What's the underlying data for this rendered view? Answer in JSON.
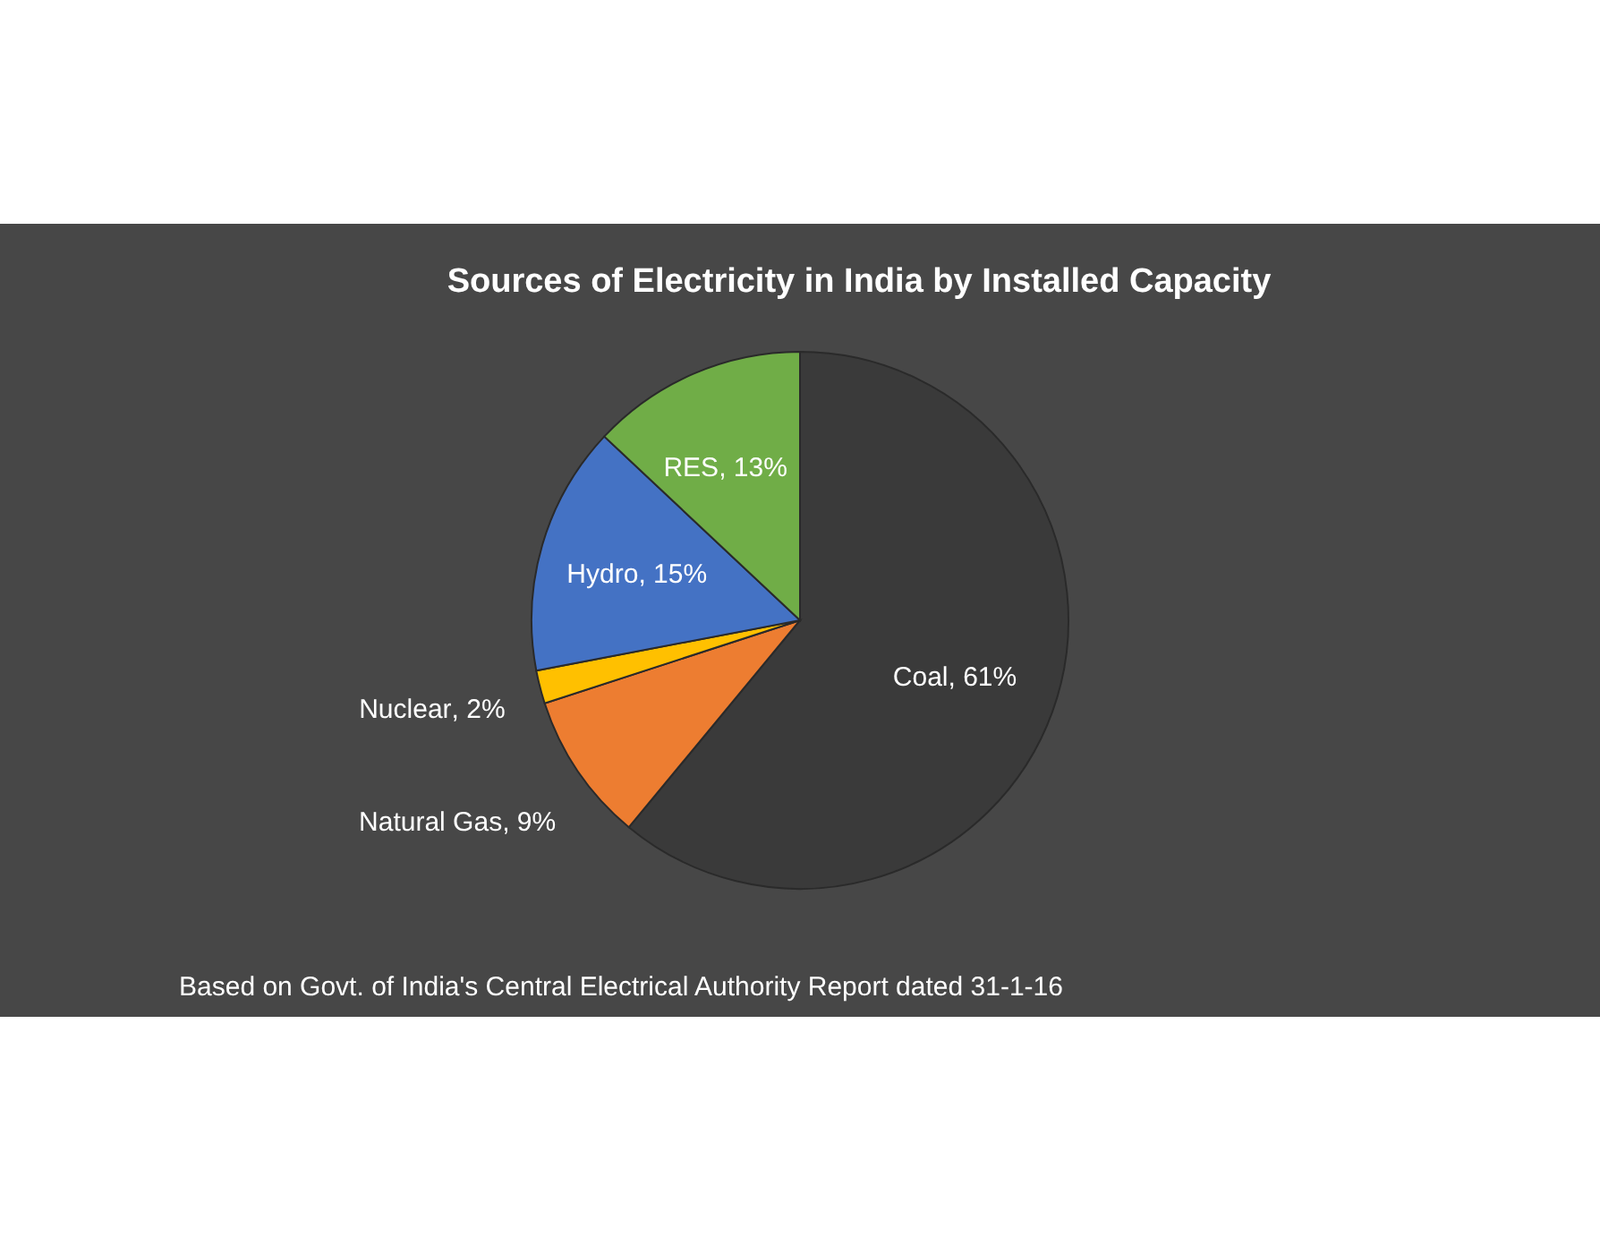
{
  "chart_data": {
    "type": "pie",
    "title": "Sources of Electricity in India by Installed Capacity",
    "categories": [
      "Coal",
      "Natural Gas",
      "Nuclear",
      "Hydro",
      "RES"
    ],
    "values": [
      61,
      9,
      2,
      15,
      13
    ],
    "colors": [
      "#3a3a3a",
      "#ed7d31",
      "#ffc000",
      "#4472c4",
      "#70ad47"
    ],
    "value_labels": [
      ", 61%",
      ", 9%",
      ", 2%",
      ", 15%",
      ", 13%"
    ],
    "annotations": [
      "Based on Govt. of India's Central Electrical Authority Report dated 31-1-16"
    ]
  }
}
